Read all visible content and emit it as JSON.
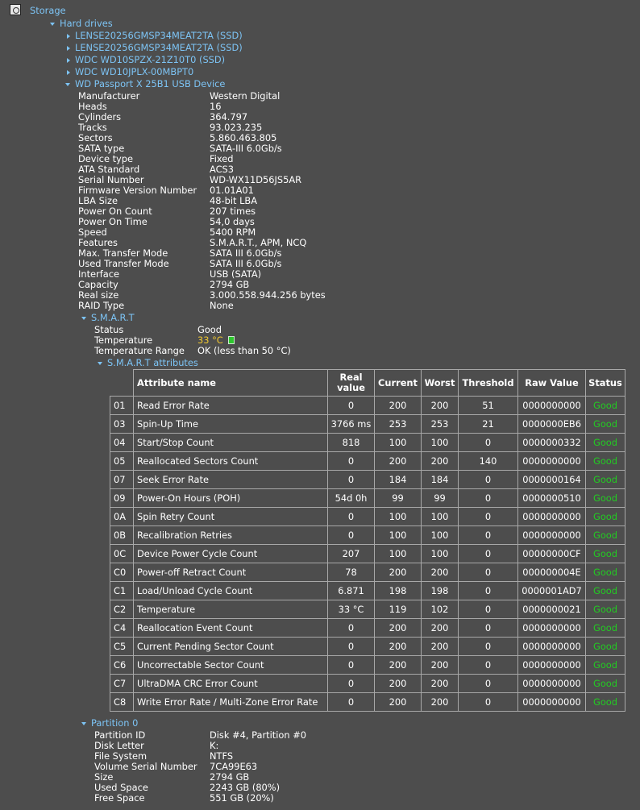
{
  "storage": {
    "label": "Storage"
  },
  "hard_drives": {
    "label": "Hard drives",
    "drives": [
      "LENSE20256GMSP34MEAT2TA (SSD)",
      "LENSE20256GMSP34MEAT2TA (SSD)",
      "WDC WD10SPZX-21Z10T0 (SSD)",
      "WDC WD10JPLX-00MBPT0",
      "WD Passport X 25B1 USB Device"
    ]
  },
  "device_props": [
    {
      "label": "Manufacturer",
      "value": "Western Digital"
    },
    {
      "label": "Heads",
      "value": "16"
    },
    {
      "label": "Cylinders",
      "value": "364.797"
    },
    {
      "label": "Tracks",
      "value": "93.023.235"
    },
    {
      "label": "Sectors",
      "value": "5.860.463.805"
    },
    {
      "label": "SATA type",
      "value": "SATA-III 6.0Gb/s"
    },
    {
      "label": "Device type",
      "value": "Fixed"
    },
    {
      "label": "ATA Standard",
      "value": "ACS3"
    },
    {
      "label": "Serial Number",
      "value": "WD-WX11D56JS5AR"
    },
    {
      "label": "Firmware Version Number",
      "value": "01.01A01"
    },
    {
      "label": "LBA Size",
      "value": "48-bit LBA"
    },
    {
      "label": "Power On Count",
      "value": "207 times"
    },
    {
      "label": "Power On Time",
      "value": "54,0 days"
    },
    {
      "label": "Speed",
      "value": "5400 RPM"
    },
    {
      "label": "Features",
      "value": "S.M.A.R.T., APM, NCQ"
    },
    {
      "label": "Max. Transfer Mode",
      "value": "SATA III 6.0Gb/s"
    },
    {
      "label": "Used Transfer Mode",
      "value": "SATA III 6.0Gb/s"
    },
    {
      "label": "Interface",
      "value": "USB (SATA)"
    },
    {
      "label": "Capacity",
      "value": "2794 GB"
    },
    {
      "label": "Real size",
      "value": "3.000.558.944.256 bytes"
    },
    {
      "label": "RAID Type",
      "value": "None"
    }
  ],
  "smart": {
    "label": "S.M.A.R.T",
    "status_label": "Status",
    "status_value": "Good",
    "temp_label": "Temperature",
    "temp_value": "33 °C",
    "temp_color": "#f0c830",
    "range_label": "Temperature Range",
    "range_value": "OK (less than 50 °C)",
    "attributes_label": "S.M.A.R.T attributes",
    "columns": [
      "Attribute name",
      "Real value",
      "Current",
      "Worst",
      "Threshold",
      "Raw Value",
      "Status"
    ],
    "rows": [
      [
        "01",
        "Read Error Rate",
        "0",
        "200",
        "200",
        "51",
        "0000000000",
        "Good"
      ],
      [
        "03",
        "Spin-Up Time",
        "3766 ms",
        "253",
        "253",
        "21",
        "0000000EB6",
        "Good"
      ],
      [
        "04",
        "Start/Stop Count",
        "818",
        "100",
        "100",
        "0",
        "0000000332",
        "Good"
      ],
      [
        "05",
        "Reallocated Sectors Count",
        "0",
        "200",
        "200",
        "140",
        "0000000000",
        "Good"
      ],
      [
        "07",
        "Seek Error Rate",
        "0",
        "184",
        "184",
        "0",
        "0000000164",
        "Good"
      ],
      [
        "09",
        "Power-On Hours (POH)",
        "54d 0h",
        "99",
        "99",
        "0",
        "0000000510",
        "Good"
      ],
      [
        "0A",
        "Spin Retry Count",
        "0",
        "100",
        "100",
        "0",
        "0000000000",
        "Good"
      ],
      [
        "0B",
        "Recalibration Retries",
        "0",
        "100",
        "100",
        "0",
        "0000000000",
        "Good"
      ],
      [
        "0C",
        "Device Power Cycle Count",
        "207",
        "100",
        "100",
        "0",
        "00000000CF",
        "Good"
      ],
      [
        "C0",
        "Power-off Retract Count",
        "78",
        "200",
        "200",
        "0",
        "000000004E",
        "Good"
      ],
      [
        "C1",
        "Load/Unload Cycle Count",
        "6.871",
        "198",
        "198",
        "0",
        "0000001AD7",
        "Good"
      ],
      [
        "C2",
        "Temperature",
        "33 °C",
        "119",
        "102",
        "0",
        "0000000021",
        "Good"
      ],
      [
        "C4",
        "Reallocation Event Count",
        "0",
        "200",
        "200",
        "0",
        "0000000000",
        "Good"
      ],
      [
        "C5",
        "Current Pending Sector Count",
        "0",
        "200",
        "200",
        "0",
        "0000000000",
        "Good"
      ],
      [
        "C6",
        "Uncorrectable Sector Count",
        "0",
        "200",
        "200",
        "0",
        "0000000000",
        "Good"
      ],
      [
        "C7",
        "UltraDMA CRC Error Count",
        "0",
        "200",
        "200",
        "0",
        "0000000000",
        "Good"
      ],
      [
        "C8",
        "Write Error Rate / Multi-Zone Error Rate",
        "0",
        "200",
        "200",
        "0",
        "0000000000",
        "Good"
      ]
    ]
  },
  "partition": {
    "label": "Partition 0",
    "props": [
      {
        "label": "Partition ID",
        "value": "Disk #4, Partition #0"
      },
      {
        "label": "Disk Letter",
        "value": "K:"
      },
      {
        "label": "File System",
        "value": "NTFS"
      },
      {
        "label": "Volume Serial Number",
        "value": "7CA99E63"
      },
      {
        "label": "Size",
        "value": "2794 GB"
      },
      {
        "label": "Used Space",
        "value": "2243 GB (80%)"
      },
      {
        "label": "Free Space",
        "value": "551 GB (20%)"
      }
    ]
  },
  "colors": {
    "link": "#7dc4f5",
    "good": "#22cc22",
    "background": "#4d4d4d"
  }
}
